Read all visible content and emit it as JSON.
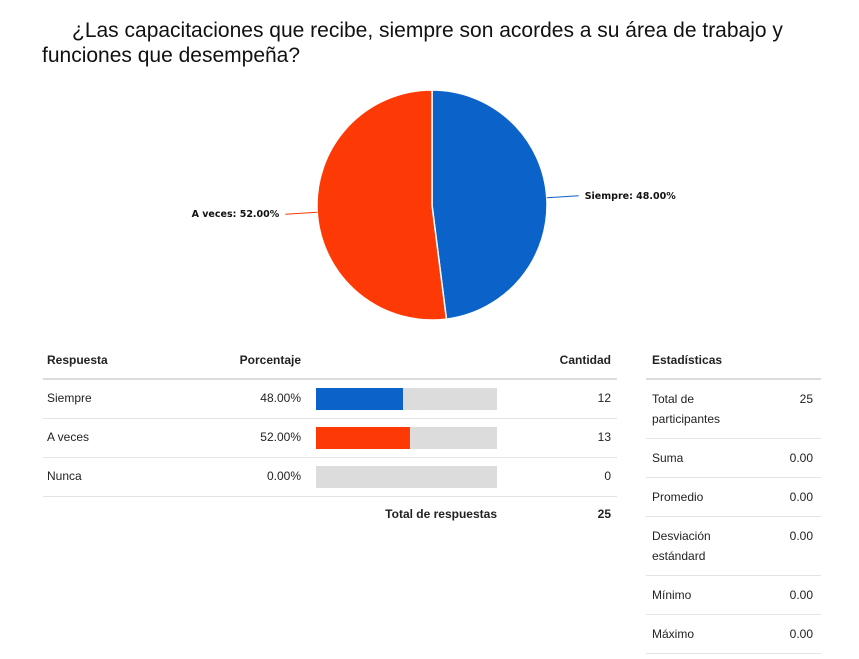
{
  "title": "¿Las capacitaciones que recibe, siempre son acordes a su área de trabajo y funciones que desempeña?",
  "chart_data": {
    "type": "pie",
    "title": "¿Las capacitaciones que recibe, siempre son acordes a su área de trabajo y funciones que desempeña?",
    "slices": [
      {
        "label": "Siempre",
        "value": 48.0,
        "display": "Siempre: 48.00%",
        "color": "#0b62c9"
      },
      {
        "label": "A veces",
        "value": 52.0,
        "display": "A veces: 52.00%",
        "color": "#fd3a05"
      }
    ]
  },
  "table": {
    "headers": {
      "respuesta": "Respuesta",
      "porcentaje": "Porcentaje",
      "cantidad": "Cantidad"
    },
    "rows": [
      {
        "respuesta": "Siempre",
        "porcentaje": "48.00%",
        "fraction": 0.48,
        "cantidad": "12",
        "color": "#0b62c9"
      },
      {
        "respuesta": "A veces",
        "porcentaje": "52.00%",
        "fraction": 0.52,
        "cantidad": "13",
        "color": "#fd3a05"
      },
      {
        "respuesta": "Nunca",
        "porcentaje": "0.00%",
        "fraction": 0.0,
        "cantidad": "0",
        "color": "#cccccc"
      }
    ],
    "total_label": "Total de respuestas",
    "total_value": "25"
  },
  "stats": {
    "header": "Estadísticas",
    "rows": [
      {
        "name": "Total de participantes",
        "value": "25"
      },
      {
        "name": "Suma",
        "value": "0.00"
      },
      {
        "name": "Promedio",
        "value": "0.00"
      },
      {
        "name": "Desviación estándard",
        "value": "0.00"
      },
      {
        "name": "Mínimo",
        "value": "0.00"
      },
      {
        "name": "Máximo",
        "value": "0.00"
      }
    ]
  }
}
